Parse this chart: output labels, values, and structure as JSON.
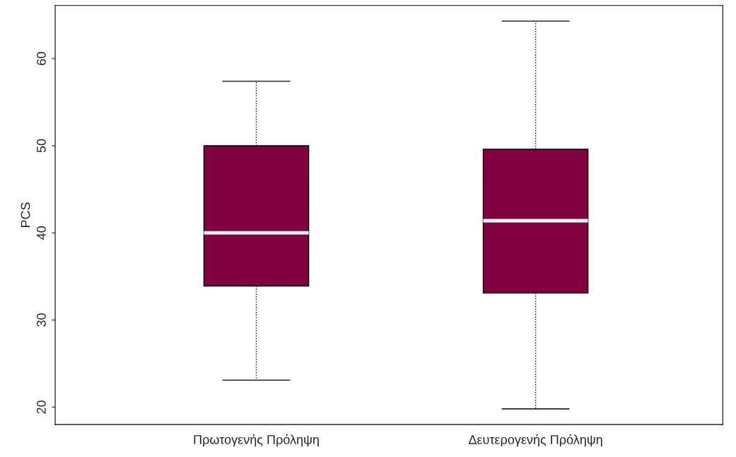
{
  "chart_data": {
    "type": "box",
    "ylabel": "PCS",
    "categories": [
      "Πρωτογενής Πρόληψη",
      "Δευτερογενής Πρόληψη"
    ],
    "boxes": [
      {
        "low": 23.1,
        "q1": 33.9,
        "median": 40.0,
        "q3": 50.0,
        "high": 57.4
      },
      {
        "low": 19.8,
        "q1": 33.1,
        "median": 41.4,
        "q3": 49.6,
        "high": 64.3
      }
    ],
    "color": "#800040",
    "ylim": [
      18.0,
      66.1
    ],
    "yticks": [
      20,
      30,
      40,
      50,
      60
    ],
    "grid": false
  }
}
